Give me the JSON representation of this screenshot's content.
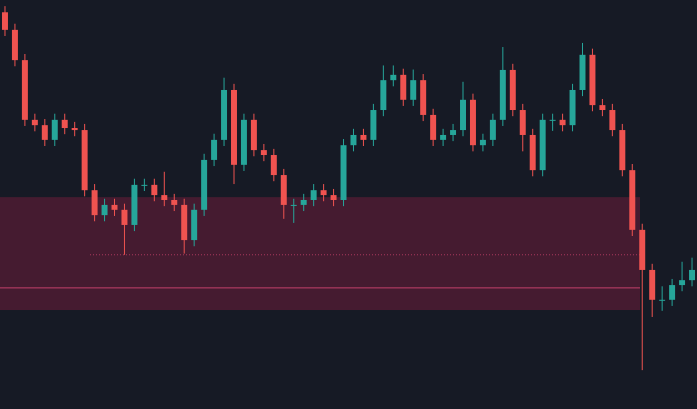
{
  "chart_data": {
    "type": "candlestick",
    "ylim": [
      0,
      100
    ],
    "up_color": "#26a69a",
    "down_color": "#ef5350",
    "background": "#161a25",
    "zone": {
      "low": 24.2,
      "high": 51.8,
      "color": "#4a1c32"
    },
    "level": {
      "value": 29.6,
      "color": "#c2406a"
    },
    "dotted_level": {
      "value": 37.7,
      "color": "#a8385c"
    },
    "open": [
      97,
      92.7,
      85.3,
      70.7,
      69.4,
      65.8,
      70.7,
      68.7,
      68.2,
      53.5,
      47.4,
      49.9,
      48.7,
      45.0,
      54.8,
      54.8,
      52.3,
      51.1,
      49.9,
      41.3,
      48.7,
      60.9,
      65.8,
      78.0,
      59.7,
      70.7,
      63.3,
      62.1,
      57.2,
      49.9,
      49.9,
      51.1,
      53.5,
      52.3,
      51.1,
      64.5,
      67.0,
      65.8,
      73.1,
      80.4,
      81.7,
      75.6,
      80.4,
      71.9,
      65.8,
      67.0,
      68.2,
      75.6,
      64.5,
      65.8,
      70.7,
      82.9,
      73.1,
      67.0,
      58.4,
      70.7,
      70.7,
      69.4,
      78.0,
      86.6,
      74.3,
      73.1,
      68.2,
      58.4,
      43.8,
      34.0,
      26.7,
      26.7,
      30.3,
      31.5
    ],
    "high": [
      98.5,
      94.2,
      86.8,
      72.2,
      70.9,
      72.2,
      72.2,
      70.2,
      69.7,
      55.0,
      51.4,
      51.4,
      50.2,
      56.3,
      56.3,
      56.3,
      58.0,
      52.6,
      51.4,
      50.2,
      62.4,
      67.3,
      81.0,
      79.5,
      72.2,
      72.2,
      64.8,
      63.6,
      58.7,
      51.4,
      52.6,
      55.0,
      55.0,
      53.8,
      66.0,
      68.5,
      68.5,
      74.6,
      84.0,
      84.0,
      83.2,
      83.0,
      81.9,
      73.4,
      68.5,
      69.7,
      80.0,
      77.1,
      67.3,
      72.2,
      88.5,
      84.4,
      74.6,
      68.5,
      72.2,
      72.2,
      72.2,
      79.5,
      89.5,
      88.1,
      75.8,
      74.6,
      69.7,
      59.9,
      45.3,
      35.5,
      30.0,
      31.8,
      36.0,
      37.0
    ],
    "low": [
      91.2,
      83.8,
      69.2,
      67.9,
      64.3,
      64.3,
      67.2,
      66.7,
      52.0,
      45.9,
      45.9,
      47.2,
      37.7,
      43.5,
      53.3,
      50.8,
      49.6,
      48.4,
      38.0,
      39.8,
      47.2,
      59.4,
      64.3,
      55.0,
      58.2,
      61.8,
      60.6,
      55.7,
      46.5,
      45.5,
      48.4,
      49.6,
      50.8,
      49.6,
      49.6,
      63.0,
      64.3,
      64.3,
      71.6,
      78.9,
      74.1,
      74.1,
      70.4,
      64.3,
      64.3,
      65.5,
      66.7,
      63.0,
      63.0,
      64.3,
      69.2,
      71.6,
      63.0,
      56.9,
      56.9,
      68.0,
      67.9,
      67.9,
      76.5,
      72.8,
      71.6,
      66.7,
      56.9,
      42.3,
      9.5,
      22.5,
      24.0,
      25.2,
      28.8,
      30.0
    ],
    "close": [
      92.7,
      85.3,
      70.7,
      69.4,
      65.8,
      70.7,
      68.7,
      68.2,
      53.5,
      47.4,
      49.9,
      48.7,
      45.0,
      54.8,
      54.8,
      52.3,
      51.1,
      49.9,
      41.3,
      48.7,
      60.9,
      65.8,
      78.0,
      59.7,
      70.7,
      63.3,
      62.1,
      57.2,
      49.9,
      49.9,
      51.1,
      53.5,
      52.3,
      51.1,
      64.5,
      67.0,
      65.8,
      73.1,
      80.4,
      81.7,
      75.6,
      80.4,
      71.9,
      65.8,
      67.0,
      68.2,
      75.6,
      64.5,
      65.8,
      70.7,
      82.9,
      73.1,
      67.0,
      58.4,
      70.7,
      70.7,
      69.4,
      78.0,
      86.6,
      74.3,
      73.1,
      68.2,
      58.4,
      43.8,
      34.0,
      26.7,
      26.7,
      30.3,
      31.5,
      34.0
    ]
  }
}
